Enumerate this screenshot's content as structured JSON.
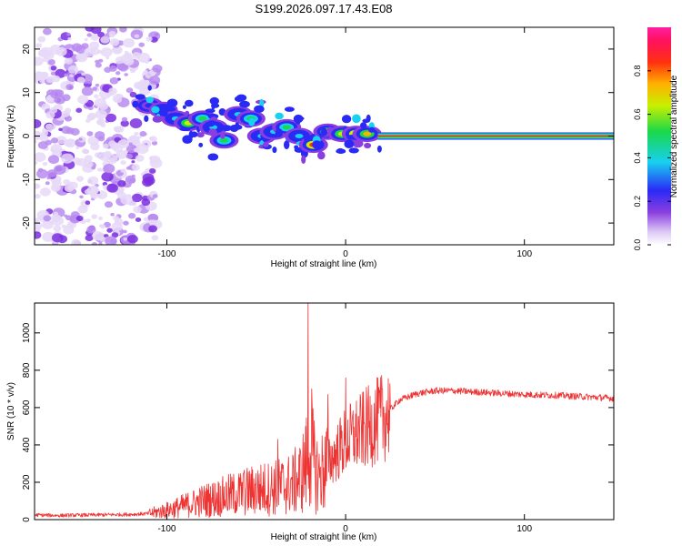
{
  "title": "S199.2026.097.17.43.E08",
  "chart_data": [
    {
      "type": "heatmap",
      "panel": "spectrogram",
      "xlabel": "Height of straight line (km)",
      "ylabel": "Frequency (Hz)",
      "xlim": [
        -174,
        150
      ],
      "ylim": [
        -25,
        25
      ],
      "xticks": [
        -100,
        0,
        100
      ],
      "xtick_labels": [
        "-100",
        "0",
        "100"
      ],
      "yticks": [
        -20,
        -10,
        0,
        10,
        20
      ],
      "ytick_labels": [
        "-20",
        "-10",
        "0",
        "10",
        "20"
      ],
      "colorbar": {
        "label": "Normalized spectral amplitude",
        "range": [
          0,
          1
        ],
        "ticks": [
          0,
          0.2,
          0.4,
          0.6,
          0.8
        ],
        "tick_labels": [
          "0.0",
          "0.2",
          "0.4",
          "0.6",
          "0.8"
        ],
        "colormap": "rainbow (white-purple-blue-cyan-green-yellow-red-magenta)"
      },
      "features": {
        "noise_region_x": [
          -174,
          -105
        ],
        "chirp_blobs": [
          {
            "x": -110,
            "f": 7,
            "amp": 0.2
          },
          {
            "x": -102,
            "f": 6,
            "amp": 0.25
          },
          {
            "x": -95,
            "f": 4,
            "amp": 0.3
          },
          {
            "x": -88,
            "f": 3,
            "amp": 0.55
          },
          {
            "x": -80,
            "f": 4,
            "amp": 0.45
          },
          {
            "x": -74,
            "f": 2,
            "amp": 0.35
          },
          {
            "x": -68,
            "f": -1,
            "amp": 0.4
          },
          {
            "x": -60,
            "f": 5,
            "amp": 0.3
          },
          {
            "x": -53,
            "f": 4,
            "amp": 0.45
          },
          {
            "x": -47,
            "f": 0,
            "amp": 0.3
          },
          {
            "x": -40,
            "f": 1,
            "amp": 0.35
          },
          {
            "x": -33,
            "f": 2,
            "amp": 0.4
          },
          {
            "x": -26,
            "f": 0,
            "amp": 0.3
          },
          {
            "x": -18,
            "f": -2,
            "amp": 0.75
          },
          {
            "x": -10,
            "f": 1,
            "amp": 0.6
          },
          {
            "x": -2,
            "f": 0.5,
            "amp": 0.55
          },
          {
            "x": 6,
            "f": 0.5,
            "amp": 0.8
          },
          {
            "x": 12,
            "f": 0.5,
            "amp": 0.7
          }
        ],
        "carrier_line": {
          "x_start": 18,
          "x_end": 150,
          "f": 0,
          "amp": 1.0
        }
      }
    },
    {
      "type": "line",
      "panel": "snr",
      "xlabel": "Height of straight line (km)",
      "ylabel": "SNR (10 * v/v)",
      "xlim": [
        -174,
        150
      ],
      "ylim": [
        0,
        1160
      ],
      "xticks": [
        -100,
        0,
        100
      ],
      "xtick_labels": [
        "-100",
        "0",
        "100"
      ],
      "yticks": [
        0,
        200,
        400,
        600,
        800,
        1000
      ],
      "ytick_labels": [
        "0",
        "200",
        "400",
        "600",
        "800",
        "1000"
      ],
      "series": [
        {
          "name": "SNR",
          "color": "#ee3333",
          "x": [
            -174,
            -160,
            -140,
            -120,
            -110,
            -100,
            -90,
            -80,
            -70,
            -60,
            -50,
            -40,
            -35,
            -30,
            -25,
            -22,
            -20,
            -18,
            -15,
            -10,
            -5,
            0,
            10,
            20,
            25,
            30,
            40,
            50,
            60,
            80,
            100,
            120,
            140,
            150
          ],
          "y": [
            25,
            22,
            25,
            28,
            32,
            50,
            75,
            100,
            120,
            140,
            160,
            170,
            180,
            190,
            230,
            300,
            420,
            300,
            230,
            300,
            360,
            420,
            480,
            540,
            590,
            640,
            675,
            690,
            690,
            680,
            670,
            665,
            655,
            650
          ]
        }
      ],
      "peaks": [
        {
          "x": -21,
          "y": 1160
        },
        {
          "x": -19,
          "y": 700
        },
        {
          "x": -10,
          "y": 670
        },
        {
          "x": 0,
          "y": 760
        },
        {
          "x": -38,
          "y": 430
        },
        {
          "x": -57,
          "y": 250
        }
      ]
    }
  ],
  "colors": {
    "snr_line": "#ee3333",
    "noise_purple": "#8a3ee0",
    "carrier_red": "#e8103a",
    "carrier_green": "#19d84a"
  }
}
